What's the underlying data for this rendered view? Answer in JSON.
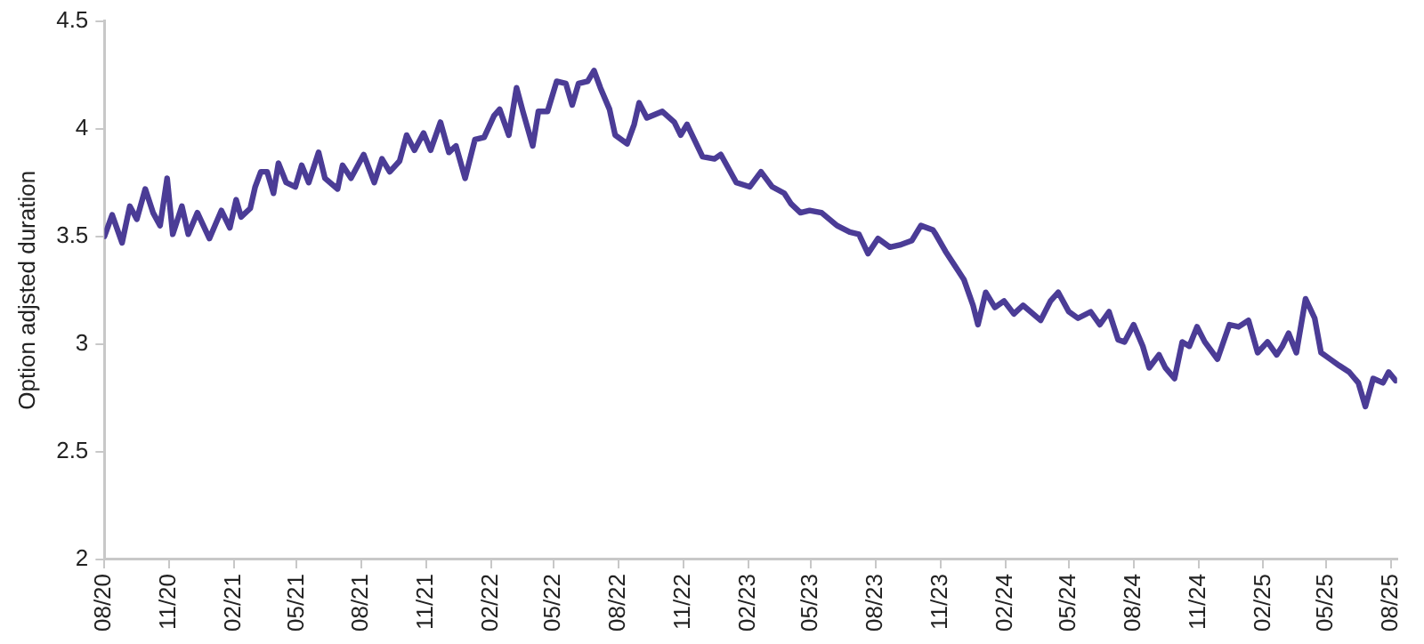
{
  "chart_data": {
    "type": "line",
    "ylabel": "Option adjsted duration",
    "xlim": [
      "2020-08-01",
      "2025-08-10"
    ],
    "xticks": [
      {
        "value": "2020-08-01",
        "label": "08/20"
      },
      {
        "value": "2020-11-01",
        "label": "11/20"
      },
      {
        "value": "2021-02-01",
        "label": "02/21"
      },
      {
        "value": "2021-05-01",
        "label": "05/21"
      },
      {
        "value": "2021-08-01",
        "label": "08/21"
      },
      {
        "value": "2021-11-01",
        "label": "11/21"
      },
      {
        "value": "2022-02-01",
        "label": "02/22"
      },
      {
        "value": "2022-05-01",
        "label": "05/22"
      },
      {
        "value": "2022-08-01",
        "label": "08/22"
      },
      {
        "value": "2022-11-01",
        "label": "11/22"
      },
      {
        "value": "2023-02-01",
        "label": "02/23"
      },
      {
        "value": "2023-05-01",
        "label": "05/23"
      },
      {
        "value": "2023-08-01",
        "label": "08/23"
      },
      {
        "value": "2023-11-01",
        "label": "11/23"
      },
      {
        "value": "2024-02-01",
        "label": "02/24"
      },
      {
        "value": "2024-05-01",
        "label": "05/24"
      },
      {
        "value": "2024-08-01",
        "label": "08/24"
      },
      {
        "value": "2024-11-01",
        "label": "11/24"
      },
      {
        "value": "2025-02-01",
        "label": "02/25"
      },
      {
        "value": "2025-05-01",
        "label": "05/25"
      },
      {
        "value": "2025-08-01",
        "label": "08/25"
      }
    ],
    "ylim": [
      2,
      4.5
    ],
    "yticks": [
      2,
      2.5,
      3,
      3.5,
      4,
      4.5
    ],
    "grid": false,
    "legend": false,
    "marker": "none",
    "line_style": "solid",
    "x": [
      "2020-08-01",
      "2020-08-12",
      "2020-08-26",
      "2020-09-06",
      "2020-09-16",
      "2020-09-28",
      "2020-10-09",
      "2020-10-19",
      "2020-10-29",
      "2020-11-06",
      "2020-11-19",
      "2020-11-28",
      "2020-12-11",
      "2020-12-28",
      "2021-01-14",
      "2021-01-26",
      "2021-02-04",
      "2021-02-11",
      "2021-02-24",
      "2021-03-03",
      "2021-03-11",
      "2021-03-20",
      "2021-03-29",
      "2021-04-05",
      "2021-04-16",
      "2021-04-29",
      "2021-05-08",
      "2021-05-18",
      "2021-06-01",
      "2021-06-10",
      "2021-06-28",
      "2021-07-05",
      "2021-07-17",
      "2021-08-04",
      "2021-08-19",
      "2021-08-30",
      "2021-09-10",
      "2021-09-24",
      "2021-10-04",
      "2021-10-15",
      "2021-10-28",
      "2021-11-07",
      "2021-11-21",
      "2021-12-03",
      "2021-12-13",
      "2021-12-26",
      "2022-01-09",
      "2022-01-22",
      "2022-02-05",
      "2022-02-13",
      "2022-02-26",
      "2022-03-09",
      "2022-03-18",
      "2022-04-01",
      "2022-04-09",
      "2022-04-22",
      "2022-05-05",
      "2022-05-18",
      "2022-05-27",
      "2022-06-05",
      "2022-06-18",
      "2022-06-27",
      "2022-07-06",
      "2022-07-19",
      "2022-07-27",
      "2022-08-13",
      "2022-08-23",
      "2022-08-30",
      "2022-09-10",
      "2022-10-02",
      "2022-10-19",
      "2022-10-28",
      "2022-11-06",
      "2022-11-28",
      "2022-12-15",
      "2022-12-24",
      "2023-01-15",
      "2023-02-03",
      "2023-02-19",
      "2023-03-07",
      "2023-03-24",
      "2023-04-03",
      "2023-04-16",
      "2023-04-29",
      "2023-05-16",
      "2023-06-07",
      "2023-06-25",
      "2023-07-08",
      "2023-07-21",
      "2023-08-04",
      "2023-08-21",
      "2023-09-04",
      "2023-09-21",
      "2023-10-04",
      "2023-10-21",
      "2023-10-25",
      "2023-11-08",
      "2023-11-26",
      "2023-12-04",
      "2023-12-17",
      "2023-12-24",
      "2024-01-04",
      "2024-01-17",
      "2024-01-30",
      "2024-02-13",
      "2024-02-26",
      "2024-03-22",
      "2024-04-05",
      "2024-04-16",
      "2024-05-01",
      "2024-05-14",
      "2024-06-01",
      "2024-06-14",
      "2024-06-27",
      "2024-07-10",
      "2024-07-19",
      "2024-08-01",
      "2024-08-14",
      "2024-08-23",
      "2024-09-06",
      "2024-09-15",
      "2024-09-28",
      "2024-10-09",
      "2024-10-19",
      "2024-10-30",
      "2024-11-10",
      "2024-11-28",
      "2024-12-15",
      "2024-12-28",
      "2025-01-11",
      "2025-01-24",
      "2025-02-07",
      "2025-02-20",
      "2025-02-28",
      "2025-03-09",
      "2025-03-20",
      "2025-04-02",
      "2025-04-15",
      "2025-04-24",
      "2025-05-07",
      "2025-05-20",
      "2025-06-03",
      "2025-06-16",
      "2025-06-26",
      "2025-07-07",
      "2025-07-21",
      "2025-07-29",
      "2025-08-08"
    ],
    "series": [
      {
        "color": "#4b3c96",
        "values": [
          3.5,
          3.6,
          3.47,
          3.64,
          3.58,
          3.72,
          3.61,
          3.55,
          3.77,
          3.51,
          3.64,
          3.51,
          3.61,
          3.49,
          3.62,
          3.54,
          3.67,
          3.59,
          3.63,
          3.73,
          3.8,
          3.8,
          3.7,
          3.84,
          3.75,
          3.73,
          3.83,
          3.75,
          3.89,
          3.77,
          3.72,
          3.83,
          3.77,
          3.88,
          3.75,
          3.86,
          3.8,
          3.85,
          3.97,
          3.9,
          3.98,
          3.9,
          4.03,
          3.89,
          3.92,
          3.77,
          3.95,
          3.96,
          4.06,
          4.09,
          3.97,
          4.19,
          4.08,
          3.92,
          4.08,
          4.08,
          4.22,
          4.21,
          4.11,
          4.21,
          4.22,
          4.27,
          4.19,
          4.09,
          3.97,
          3.93,
          4.02,
          4.12,
          4.05,
          4.08,
          4.03,
          3.97,
          4.02,
          3.87,
          3.86,
          3.88,
          3.75,
          3.73,
          3.8,
          3.73,
          3.7,
          3.65,
          3.61,
          3.62,
          3.61,
          3.55,
          3.52,
          3.51,
          3.42,
          3.49,
          3.45,
          3.46,
          3.48,
          3.55,
          3.53,
          3.51,
          3.43,
          3.34,
          3.3,
          3.18,
          3.09,
          3.24,
          3.17,
          3.2,
          3.14,
          3.18,
          3.11,
          3.2,
          3.24,
          3.15,
          3.12,
          3.15,
          3.09,
          3.15,
          3.02,
          3.01,
          3.09,
          2.99,
          2.89,
          2.95,
          2.89,
          2.84,
          3.01,
          2.99,
          3.08,
          3.01,
          2.93,
          3.09,
          3.08,
          3.11,
          2.96,
          3.01,
          2.95,
          2.99,
          3.05,
          2.96,
          3.21,
          3.12,
          2.96,
          2.93,
          2.9,
          2.87,
          2.82,
          2.71,
          2.84,
          2.82,
          2.87,
          2.83
        ]
      }
    ]
  }
}
